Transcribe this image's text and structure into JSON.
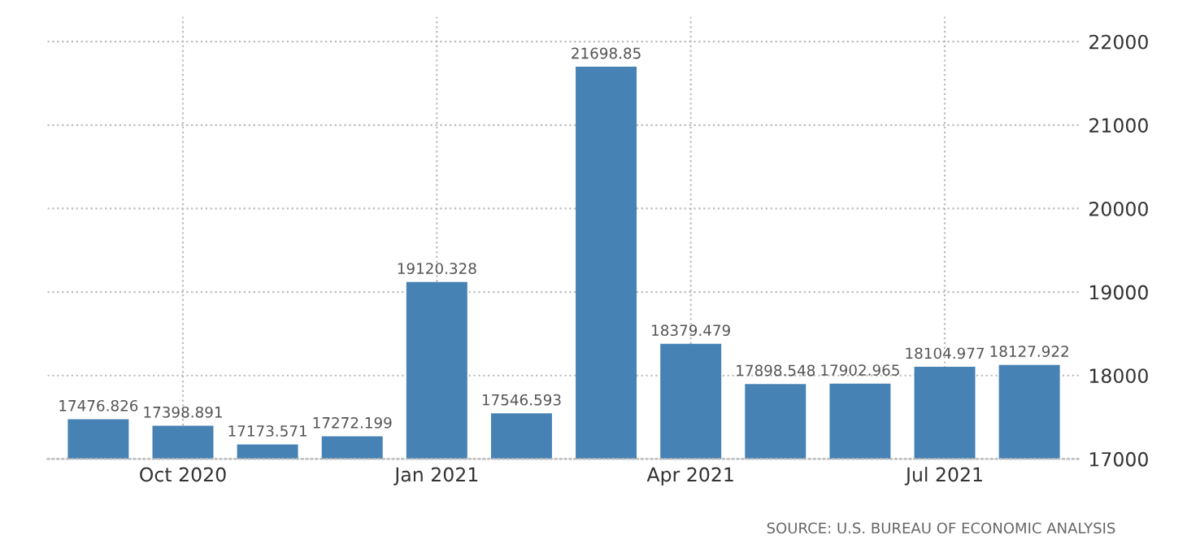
{
  "chart_data": {
    "type": "bar",
    "categories": [
      null,
      "Oct 2020",
      null,
      null,
      "Jan 2021",
      null,
      null,
      "Apr 2021",
      null,
      null,
      "Jul 2021",
      null
    ],
    "values": [
      17476.826,
      17398.891,
      17173.571,
      17272.199,
      19120.328,
      17546.593,
      21698.85,
      18379.479,
      17898.548,
      17902.965,
      18104.977,
      18127.922
    ],
    "color": "#4682b4",
    "ylim": [
      17000,
      22300
    ],
    "yticks": [
      17000,
      18000,
      19000,
      20000,
      21000,
      22000
    ],
    "grid": true,
    "data_labels": true,
    "annotations": [
      "SOURCE: U.S. BUREAU OF ECONOMIC ANALYSIS"
    ]
  }
}
